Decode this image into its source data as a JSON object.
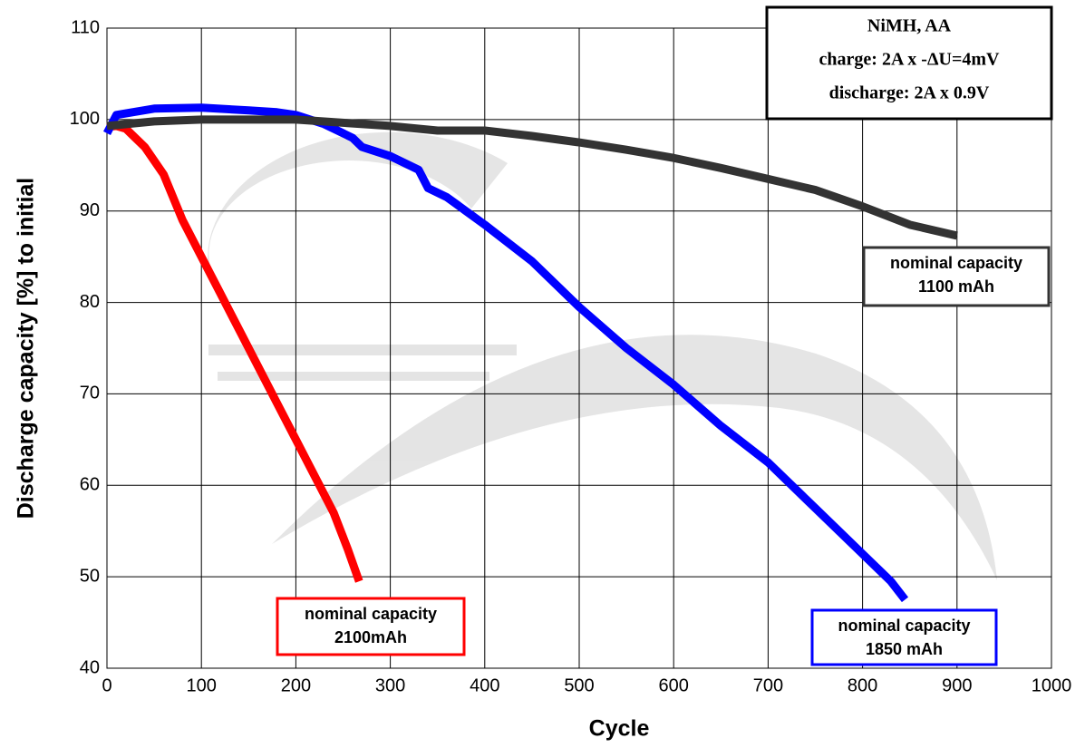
{
  "chart_data": {
    "type": "line",
    "xlabel": "Cycle",
    "ylabel": "Discharge capacity [%] to initial",
    "xlim": [
      0,
      1000
    ],
    "ylim": [
      40,
      110
    ],
    "xticks": [
      0,
      100,
      200,
      300,
      400,
      500,
      600,
      700,
      800,
      900,
      1000
    ],
    "yticks": [
      40,
      50,
      60,
      70,
      80,
      90,
      100,
      110
    ],
    "grid": true,
    "info_box": [
      "NiMH, AA",
      "charge: 2A x -ΔU=4mV",
      "discharge: 2A x 0.9V"
    ],
    "series": [
      {
        "color": "#ff0000",
        "label": [
          "nominal capacity",
          "2100mAh"
        ],
        "x": [
          0,
          10,
          20,
          25,
          40,
          60,
          80,
          100,
          120,
          140,
          160,
          180,
          200,
          220,
          240,
          255,
          267
        ],
        "values": [
          99.2,
          99.3,
          99,
          98.5,
          97,
          94,
          89,
          85,
          81,
          77,
          73,
          69,
          65,
          61,
          57,
          53,
          49.5
        ]
      },
      {
        "color": "#0000ff",
        "label": [
          "nominal capacity",
          "1850 mAh"
        ],
        "x": [
          0,
          10,
          50,
          100,
          150,
          180,
          200,
          230,
          260,
          270,
          300,
          330,
          340,
          360,
          400,
          450,
          500,
          550,
          600,
          650,
          700,
          750,
          800,
          830,
          845
        ],
        "values": [
          98.5,
          100.5,
          101.2,
          101.3,
          101,
          100.8,
          100.5,
          99.5,
          98,
          97,
          96,
          94.5,
          92.5,
          91.5,
          88.5,
          84.5,
          79.5,
          75,
          71,
          66.5,
          62.5,
          57.5,
          52.5,
          49.5,
          47.5
        ]
      },
      {
        "color": "#333333",
        "label": [
          "nominal capacity",
          "1100 mAh"
        ],
        "x": [
          0,
          50,
          100,
          200,
          300,
          350,
          400,
          450,
          500,
          550,
          600,
          650,
          700,
          750,
          800,
          850,
          900
        ],
        "values": [
          99.3,
          99.8,
          100,
          100,
          99.3,
          98.8,
          98.8,
          98.2,
          97.5,
          96.7,
          95.8,
          94.7,
          93.5,
          92.3,
          90.5,
          88.5,
          87.3
        ]
      }
    ]
  }
}
